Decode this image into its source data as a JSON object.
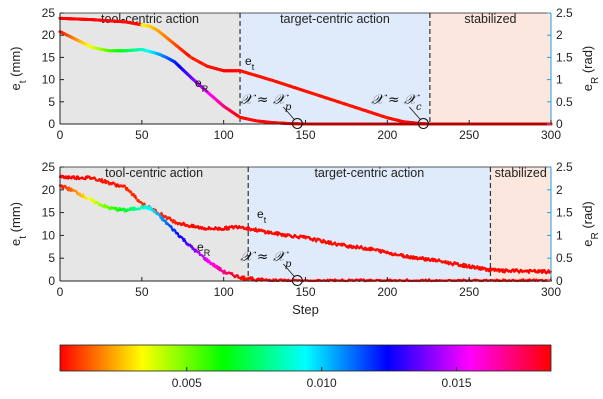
{
  "chart_data": [
    {
      "type": "line",
      "panel": "top",
      "xlim": [
        0,
        300
      ],
      "ylim_left": [
        0,
        25
      ],
      "ylim_right": [
        0,
        2.5
      ],
      "x_ticks": [
        "0",
        "50",
        "100",
        "150",
        "200",
        "250",
        "300"
      ],
      "y_ticks_left": [
        "0",
        "5",
        "10",
        "15",
        "20",
        "25"
      ],
      "y_ticks_right": [
        "0",
        "0.5",
        "1",
        "1.5",
        "2",
        "2.5"
      ],
      "ylabel_left": "e_t (mm)",
      "ylabel_right": "e_R (rad)",
      "grid": false,
      "regions": [
        {
          "label": "tool-centric action",
          "x": [
            0,
            110
          ],
          "color": "#e6e6e6"
        },
        {
          "label": "target-centric action",
          "x": [
            110,
            226
          ],
          "color": "#dfebfa"
        },
        {
          "label": "stabilized",
          "x": [
            226,
            300
          ],
          "color": "#fbe7dd"
        }
      ],
      "series": [
        {
          "name": "e_t",
          "axis": "left",
          "x": [
            0,
            20,
            40,
            55,
            60,
            70,
            80,
            90,
            100,
            110,
            130,
            150,
            170,
            190,
            200,
            210,
            220,
            226,
            240,
            260,
            280,
            300
          ],
          "values": [
            23.8,
            23.5,
            23,
            22,
            21,
            18,
            15,
            13,
            12,
            12,
            9.8,
            7.4,
            5,
            2.6,
            1.4,
            0.5,
            0.1,
            0,
            0,
            0,
            0,
            0
          ]
        },
        {
          "name": "e_R",
          "axis": "right",
          "x": [
            0,
            10,
            20,
            30,
            40,
            50,
            60,
            65,
            70,
            80,
            90,
            100,
            110,
            120,
            130,
            140,
            150,
            160,
            200,
            250,
            300
          ],
          "values": [
            2.08,
            1.9,
            1.72,
            1.65,
            1.65,
            1.68,
            1.58,
            1.5,
            1.4,
            1.05,
            0.72,
            0.4,
            0.15,
            0.07,
            0.03,
            0.01,
            0,
            0,
            0,
            0,
            0
          ]
        }
      ],
      "annotations": [
        {
          "math": "𝒳 ≈ 𝒳",
          "sub": "p",
          "x": 145
        },
        {
          "math": "𝒳 ≈ 𝒳",
          "sub": "c",
          "x": 222
        }
      ],
      "series_labels": [
        {
          "text": "e",
          "sub": "t"
        },
        {
          "text": "e",
          "sub": "R"
        }
      ]
    },
    {
      "type": "line",
      "panel": "bottom",
      "xlim": [
        0,
        300
      ],
      "ylim_left": [
        0,
        25
      ],
      "ylim_right": [
        0,
        2.5
      ],
      "x_ticks": [
        "0",
        "50",
        "100",
        "150",
        "200",
        "250",
        "300"
      ],
      "y_ticks_left": [
        "0",
        "5",
        "10",
        "15",
        "20",
        "25"
      ],
      "y_ticks_right": [
        "0",
        "0.5",
        "1",
        "1.5",
        "2",
        "2.5"
      ],
      "xlabel": "Step",
      "ylabel_left": "e_t (mm)",
      "ylabel_right": "e_R (rad)",
      "grid": false,
      "regions": [
        {
          "label": "tool-centric action",
          "x": [
            0,
            115
          ],
          "color": "#e6e6e6"
        },
        {
          "label": "target-centric action",
          "x": [
            115,
            263
          ],
          "color": "#dfebfa"
        },
        {
          "label": "stabilized",
          "x": [
            263,
            300
          ],
          "color": "#fbe7dd"
        }
      ],
      "series": [
        {
          "name": "e_t",
          "axis": "left",
          "x": [
            0,
            20,
            40,
            50,
            60,
            70,
            80,
            90,
            100,
            110,
            115,
            130,
            150,
            170,
            190,
            210,
            230,
            240,
            250,
            260,
            270,
            280,
            290,
            300
          ],
          "values": [
            22.8,
            22.6,
            20.5,
            17,
            15,
            13,
            12,
            11.5,
            11.5,
            12,
            11.5,
            10.5,
            9.5,
            8,
            7,
            5.5,
            4.5,
            3.8,
            3.2,
            2.6,
            2.2,
            2.2,
            2.1,
            2
          ],
          "noisy": true
        },
        {
          "name": "e_R",
          "axis": "right",
          "x": [
            0,
            10,
            20,
            30,
            40,
            45,
            50,
            55,
            60,
            70,
            80,
            90,
            100,
            110,
            120,
            130,
            140,
            160,
            200,
            250,
            300
          ],
          "values": [
            2.1,
            1.95,
            1.75,
            1.6,
            1.55,
            1.58,
            1.62,
            1.6,
            1.45,
            1.1,
            0.75,
            0.45,
            0.2,
            0.08,
            0.03,
            0.01,
            0,
            0,
            0,
            0,
            0
          ],
          "noisy": true
        }
      ],
      "annotations": [
        {
          "math": "𝒳 ≈ 𝒳",
          "sub": "p",
          "x": 145
        }
      ],
      "series_labels": [
        {
          "text": "e",
          "sub": "t"
        },
        {
          "text": "e",
          "sub": "R"
        }
      ]
    }
  ],
  "colorbar": {
    "colormap": [
      "#ff0000",
      "#ff8000",
      "#ffff00",
      "#80ff00",
      "#00ff00",
      "#00ff80",
      "#00ffff",
      "#0080ff",
      "#0000ff",
      "#8000ff",
      "#ff00ff",
      "#ff0080",
      "#ff0000"
    ],
    "range": [
      0.0003,
      0.0185
    ],
    "ticks": [
      "0.005",
      "0.010",
      "0.015"
    ],
    "tick_values": [
      0.005,
      0.01,
      0.015
    ]
  },
  "colors": {
    "axis": "#222222",
    "right_axis": "#1f9fd8",
    "divider": "#333333"
  }
}
